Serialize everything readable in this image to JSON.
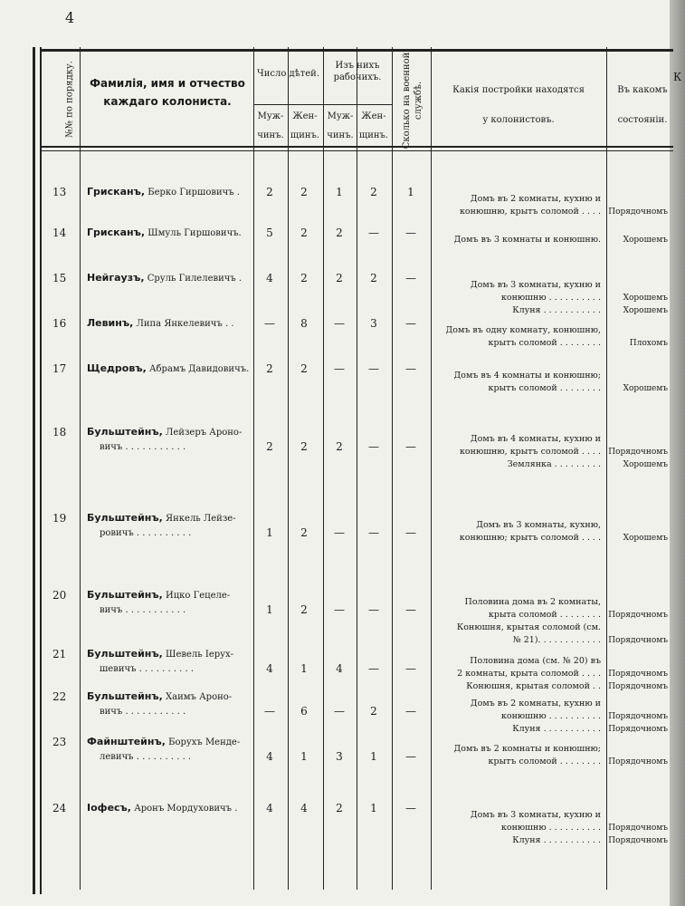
{
  "page_number": "4",
  "header": {
    "col_no": "№№ по порядку.",
    "col_name": [
      "Фамилія, имя и отчество",
      "каждаго колониста."
    ],
    "children": "Число дѣтей.",
    "workers": [
      "Изъ нихъ",
      "рабочихъ."
    ],
    "male": [
      "Муж-",
      "чинъ."
    ],
    "female": [
      "Жен-",
      "щинъ."
    ],
    "military": [
      "Сколько на военной",
      "службѣ."
    ],
    "buildings": [
      "Какія постройки находятся",
      "у колонистовъ."
    ],
    "state": [
      "Въ какомъ",
      "состояніи."
    ],
    "edge_fragment": "К"
  },
  "rows": [
    {
      "no": "13",
      "surname": "Грисканъ,",
      "name": [
        "Берко Гиршовичъ ."
      ],
      "children_m": "2",
      "children_f": "2",
      "workers_m": "1",
      "workers_f": "2",
      "military": "1",
      "buildings": [
        {
          "text": "Домъ въ 2 комнаты, кухню и",
          "state": ""
        },
        {
          "text": "конюшню, крытъ соломой . . . .",
          "state": "Порядочномъ"
        }
      ]
    },
    {
      "no": "14",
      "surname": "Грисканъ,",
      "name": [
        "Шмуль Гиршовичъ."
      ],
      "children_m": "5",
      "children_f": "2",
      "workers_m": "2",
      "workers_f": "—",
      "military": "—",
      "buildings": [
        {
          "text": "Домъ въ 3 комнаты и конюшню.",
          "state": "Хорошемъ"
        }
      ]
    },
    {
      "no": "15",
      "surname": "Нейгаузъ,",
      "name": [
        "Сруль Гилелевичъ ."
      ],
      "children_m": "4",
      "children_f": "2",
      "workers_m": "2",
      "workers_f": "2",
      "military": "—",
      "buildings": [
        {
          "text": "Домъ въ 3 комнаты, кухню и",
          "state": ""
        },
        {
          "text": "конюшню . . . . . . . . . .",
          "state": "Хорошемъ"
        },
        {
          "text": "Клуня . . . . . . . . . . .",
          "state": "Хорошемъ"
        }
      ]
    },
    {
      "no": "16",
      "surname": "Левинъ,",
      "name": [
        "Липа Янкелевичъ . ."
      ],
      "children_m": "—",
      "children_f": "8",
      "workers_m": "—",
      "workers_f": "3",
      "military": "—",
      "buildings": [
        {
          "text": "Домъ въ одну комнату, конюшню,",
          "state": ""
        },
        {
          "text": "крытъ соломой . . . . . . . .",
          "state": "Плохомъ"
        }
      ]
    },
    {
      "no": "17",
      "surname": "Щедровъ,",
      "name": [
        "Абрамъ Давидовичъ."
      ],
      "children_m": "2",
      "children_f": "2",
      "workers_m": "—",
      "workers_f": "—",
      "military": "—",
      "buildings": [
        {
          "text": "Домъ въ 4 комнаты и конюшню;",
          "state": ""
        },
        {
          "text": "крытъ соломой . . . . . . . .",
          "state": "Хорошемъ"
        }
      ]
    },
    {
      "no": "18",
      "surname": "Бульштейнъ,",
      "name": [
        "Лейзеръ Ароно-",
        "вичъ . . . . . . . . . . ."
      ],
      "children_m": "2",
      "children_f": "2",
      "workers_m": "2",
      "workers_f": "—",
      "military": "—",
      "buildings": [
        {
          "text": "Домъ въ 4 комнаты, кухню и",
          "state": ""
        },
        {
          "text": "конюшню, крытъ соломой . . . .",
          "state": "Порядочномъ"
        },
        {
          "text": "Землянка . . . . . . . . .",
          "state": "Хорошемъ"
        }
      ]
    },
    {
      "no": "19",
      "surname": "Бульштейнъ,",
      "name": [
        "Янкель Лейзе-",
        "ровичъ . . . . . . . . . ."
      ],
      "children_m": "1",
      "children_f": "2",
      "workers_m": "—",
      "workers_f": "—",
      "military": "—",
      "buildings": [
        {
          "text": "Домъ въ 3 комнаты, кухню,",
          "state": ""
        },
        {
          "text": "конюшню; крытъ соломой . . . .",
          "state": "Хорошемъ"
        }
      ]
    },
    {
      "no": "20",
      "surname": "Бульштейнъ,",
      "name": [
        "Ицко Гецеле-",
        "вичъ . . . . . . . . . . ."
      ],
      "children_m": "1",
      "children_f": "2",
      "workers_m": "—",
      "workers_f": "—",
      "military": "—",
      "buildings": [
        {
          "text": "Половина дома въ 2 комнаты,",
          "state": ""
        },
        {
          "text": "крыта соломой . . . . . . . .",
          "state": "Порядочномъ"
        },
        {
          "text": "Конюшня, крытая соломой (см.",
          "state": ""
        },
        {
          "text": "№ 21). . . . . . . . . . . .",
          "state": "Порядочномъ"
        }
      ]
    },
    {
      "no": "21",
      "surname": "Бульштейнъ,",
      "name": [
        "Шевель Іерух-",
        "шевичъ . . . . . . . . . ."
      ],
      "children_m": "4",
      "children_f": "1",
      "workers_m": "4",
      "workers_f": "—",
      "military": "—",
      "buildings": [
        {
          "text": "Половина дома (см. № 20) въ",
          "state": ""
        },
        {
          "text": "2 комнаты, крыта соломой . . . .",
          "state": "Порядочномъ"
        },
        {
          "text": "Конюшня, крытая соломой . .",
          "state": "Порядочномъ"
        }
      ]
    },
    {
      "no": "22",
      "surname": "Бульштейнъ,",
      "name": [
        "Хаимъ Ароно-",
        "вичъ . . . . . . . . . . ."
      ],
      "children_m": "—",
      "children_f": "6",
      "workers_m": "—",
      "workers_f": "2",
      "military": "—",
      "buildings": [
        {
          "text": "Домъ въ 2 комнаты, кухню и",
          "state": ""
        },
        {
          "text": "конюшню . . . . . . . . . .",
          "state": "Порядочномъ"
        },
        {
          "text": "Клуня . . . . . . . . . . .",
          "state": "Порядочномъ"
        }
      ]
    },
    {
      "no": "23",
      "surname": "Файнштейнъ,",
      "name": [
        "Борухъ Менде-",
        "левичъ . . . . . . . . . ."
      ],
      "children_m": "4",
      "children_f": "1",
      "workers_m": "3",
      "workers_f": "1",
      "military": "—",
      "buildings": [
        {
          "text": "Домъ въ 2 комнаты и конюшню;",
          "state": ""
        },
        {
          "text": "крытъ соломой . . . . . . . .",
          "state": "Порядочномъ"
        }
      ]
    },
    {
      "no": "24",
      "surname": "Іофесъ,",
      "name": [
        "Аронъ Мордуховичъ ."
      ],
      "children_m": "4",
      "children_f": "4",
      "workers_m": "2",
      "workers_f": "1",
      "military": "—",
      "buildings": [
        {
          "text": "Домъ въ 3 комнаты, кухню и",
          "state": ""
        },
        {
          "text": "конюшню . . . . . . . . . .",
          "state": "Порядочномъ"
        },
        {
          "text": "Клуня . . . . . . . . . . .",
          "state": "Порядочномъ"
        }
      ]
    }
  ]
}
